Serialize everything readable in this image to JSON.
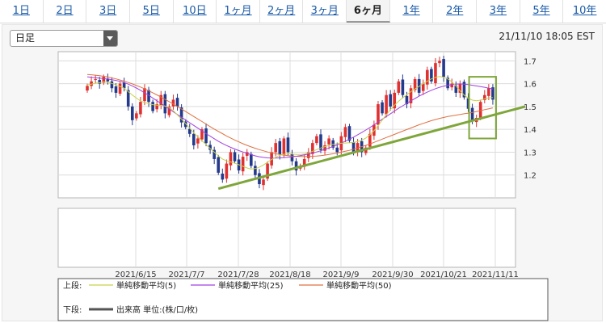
{
  "tabs": [
    {
      "label": "1日",
      "active": false
    },
    {
      "label": "2日",
      "active": false
    },
    {
      "label": "3日",
      "active": false
    },
    {
      "label": "5日",
      "active": false
    },
    {
      "label": "10日",
      "active": false
    },
    {
      "label": "1ヶ月",
      "active": false
    },
    {
      "label": "2ヶ月",
      "active": false
    },
    {
      "label": "3ヶ月",
      "active": false
    },
    {
      "label": "6ヶ月",
      "active": true
    },
    {
      "label": "1年",
      "active": false
    },
    {
      "label": "2年",
      "active": false
    },
    {
      "label": "3年",
      "active": false
    },
    {
      "label": "5年",
      "active": false
    },
    {
      "label": "10年",
      "active": false
    }
  ],
  "period_select": {
    "value": "日足"
  },
  "timestamp": "21/11/10 18:05 EST",
  "colors": {
    "up_candle": "#e03030",
    "down_candle": "#243a8c",
    "ma5": "#c8d24a",
    "ma25": "#a040e0",
    "ma50": "#e07040",
    "trendline": "#7ea63a",
    "highlight_box": "#7ea63a",
    "volume_legend": "#555555"
  },
  "chart_data": {
    "type": "candlestick",
    "y_ticks": [
      "1.7",
      "1.6",
      "1.5",
      "1.4",
      "1.3",
      "1.2"
    ],
    "ylim": [
      1.1,
      1.74
    ],
    "x_ticks": [
      "2021/6/15",
      "2021/7/7",
      "2021/7/28",
      "2021/8/18",
      "2021/9/9",
      "2021/9/30",
      "2021/10/21",
      "2021/11/11"
    ],
    "closes": [
      1.59,
      1.61,
      1.62,
      1.6,
      1.63,
      1.61,
      1.58,
      1.56,
      1.6,
      1.58,
      1.5,
      1.44,
      1.47,
      1.52,
      1.58,
      1.52,
      1.48,
      1.51,
      1.55,
      1.47,
      1.5,
      1.53,
      1.5,
      1.43,
      1.41,
      1.38,
      1.33,
      1.36,
      1.4,
      1.34,
      1.31,
      1.27,
      1.21,
      1.18,
      1.25,
      1.3,
      1.26,
      1.22,
      1.28,
      1.3,
      1.24,
      1.2,
      1.16,
      1.18,
      1.25,
      1.3,
      1.34,
      1.29,
      1.36,
      1.3,
      1.26,
      1.22,
      1.24,
      1.27,
      1.3,
      1.34,
      1.37,
      1.31,
      1.33,
      1.36,
      1.32,
      1.3,
      1.37,
      1.41,
      1.35,
      1.3,
      1.34,
      1.3,
      1.32,
      1.38,
      1.42,
      1.51,
      1.47,
      1.55,
      1.5,
      1.56,
      1.61,
      1.55,
      1.51,
      1.58,
      1.62,
      1.56,
      1.6,
      1.66,
      1.61,
      1.69,
      1.7,
      1.63,
      1.58,
      1.6,
      1.56,
      1.6,
      1.54,
      1.49,
      1.44,
      1.45,
      1.52,
      1.55,
      1.58,
      1.53
    ],
    "ma5": [
      1.595,
      1.598,
      1.602,
      1.604,
      1.608,
      1.606,
      1.601,
      1.594,
      1.588,
      1.58,
      1.565,
      1.55,
      1.537,
      1.524,
      1.518,
      1.512,
      1.508,
      1.506,
      1.505,
      1.502,
      1.495,
      1.482,
      1.463,
      1.445,
      1.425,
      1.405,
      1.385,
      1.367,
      1.35,
      1.333,
      1.316,
      1.3,
      1.284,
      1.27,
      1.262,
      1.257,
      1.252,
      1.245,
      1.238,
      1.231,
      1.226,
      1.228,
      1.234,
      1.244,
      1.256,
      1.268,
      1.278,
      1.286,
      1.291,
      1.293,
      1.292,
      1.29,
      1.29,
      1.292,
      1.297,
      1.304,
      1.311,
      1.318,
      1.324,
      1.33,
      1.334,
      1.337,
      1.339,
      1.34,
      1.341,
      1.343,
      1.346,
      1.352,
      1.362,
      1.376,
      1.394,
      1.416,
      1.44,
      1.464,
      1.486,
      1.506,
      1.523,
      1.538,
      1.552,
      1.565,
      1.577,
      1.588,
      1.6,
      1.611,
      1.621,
      1.628,
      1.631,
      1.628,
      1.621,
      1.608,
      1.59,
      1.569,
      1.55,
      1.536,
      1.528,
      1.525,
      1.528,
      1.533,
      1.537,
      1.539
    ],
    "ma25": [
      1.63,
      1.628,
      1.626,
      1.624,
      1.622,
      1.62,
      1.617,
      1.614,
      1.61,
      1.605,
      1.598,
      1.59,
      1.581,
      1.571,
      1.56,
      1.549,
      1.537,
      1.525,
      1.513,
      1.501,
      1.489,
      1.477,
      1.465,
      1.453,
      1.441,
      1.429,
      1.417,
      1.405,
      1.393,
      1.381,
      1.37,
      1.359,
      1.348,
      1.338,
      1.329,
      1.321,
      1.314,
      1.307,
      1.301,
      1.295,
      1.289,
      1.284,
      1.28,
      1.277,
      1.275,
      1.274,
      1.274,
      1.275,
      1.276,
      1.278,
      1.28,
      1.282,
      1.285,
      1.288,
      1.292,
      1.296,
      1.301,
      1.306,
      1.312,
      1.318,
      1.325,
      1.332,
      1.34,
      1.348,
      1.357,
      1.366,
      1.376,
      1.386,
      1.397,
      1.408,
      1.42,
      1.432,
      1.444,
      1.456,
      1.468,
      1.48,
      1.492,
      1.503,
      1.514,
      1.525,
      1.535,
      1.545,
      1.554,
      1.563,
      1.571,
      1.578,
      1.584,
      1.589,
      1.593,
      1.596,
      1.598,
      1.599,
      1.598,
      1.596,
      1.593,
      1.59,
      1.587,
      1.584,
      1.58,
      1.577
    ],
    "ma50": [
      1.64,
      1.639,
      1.637,
      1.635,
      1.632,
      1.629,
      1.625,
      1.621,
      1.616,
      1.611,
      1.605,
      1.599,
      1.592,
      1.585,
      1.577,
      1.569,
      1.56,
      1.551,
      1.541,
      1.531,
      1.521,
      1.511,
      1.5,
      1.489,
      1.478,
      1.467,
      1.456,
      1.445,
      1.434,
      1.423,
      1.412,
      1.401,
      1.391,
      1.381,
      1.371,
      1.362,
      1.353,
      1.345,
      1.337,
      1.33,
      1.323,
      1.317,
      1.311,
      1.306,
      1.301,
      1.297,
      1.293,
      1.29,
      1.287,
      1.285,
      1.283,
      1.282,
      1.281,
      1.281,
      1.281,
      1.282,
      1.283,
      1.285,
      1.287,
      1.29,
      1.293,
      1.296,
      1.3,
      1.304,
      1.308,
      1.313,
      1.318,
      1.324,
      1.33,
      1.336,
      1.343,
      1.35,
      1.357,
      1.364,
      1.371,
      1.378,
      1.385,
      1.392,
      1.399,
      1.406,
      1.413,
      1.42,
      1.426,
      1.432,
      1.438,
      1.443,
      1.448,
      1.452,
      1.456,
      1.459,
      1.462,
      1.465,
      1.468,
      1.471,
      1.474,
      1.478,
      1.482,
      1.486,
      1.49,
      1.494
    ],
    "trendline": {
      "from": {
        "index": 32,
        "value": 1.14
      },
      "to_value_at_right_edge": 1.5
    },
    "highlight_box": {
      "index_from": 94,
      "index_to": 99,
      "ylim": [
        1.36,
        1.63
      ]
    },
    "legend": {
      "upper_label": "上段:",
      "lower_label": "下段:",
      "ma5_label": "単純移動平均(5)",
      "ma25_label": "単純移動平均(25)",
      "ma50_label": "単純移動平均(50)",
      "volume_label": "出来高 単位:(株/口/枚)"
    }
  }
}
